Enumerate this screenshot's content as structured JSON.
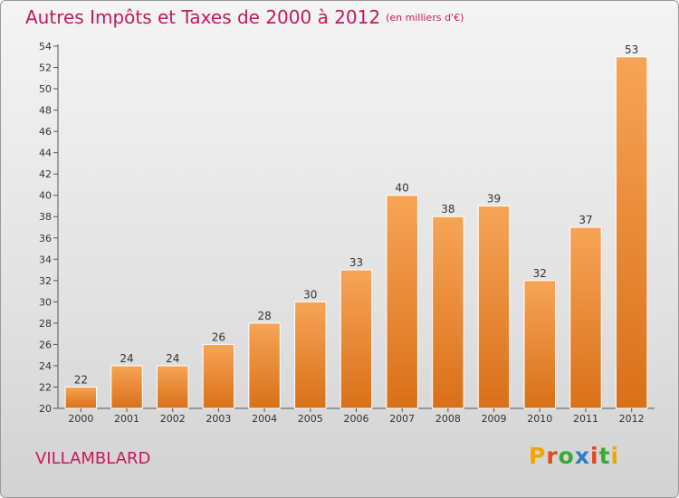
{
  "chart_data": {
    "type": "bar",
    "title": "Autres Impôts et Taxes de 2000 à 2012",
    "subtitle": "(en milliers d'€)",
    "categories": [
      "2000",
      "2001",
      "2002",
      "2003",
      "2004",
      "2005",
      "2006",
      "2007",
      "2008",
      "2009",
      "2010",
      "2011",
      "2012"
    ],
    "values": [
      22,
      24,
      24,
      26,
      28,
      30,
      33,
      40,
      38,
      39,
      32,
      37,
      53
    ],
    "ylim": [
      20,
      54
    ],
    "yticks": [
      20,
      22,
      24,
      26,
      28,
      30,
      32,
      34,
      36,
      38,
      40,
      42,
      44,
      46,
      48,
      50,
      52,
      54
    ],
    "grid": false,
    "colors": {
      "bar_light": "#f7a457",
      "bar_dark": "#d97018",
      "title": "#c8185a"
    }
  },
  "footer": {
    "place": "VILLAMBLARD",
    "brand_letters": [
      "P",
      "r",
      "o",
      "x",
      "i",
      "t",
      "i"
    ],
    "brand_colors": [
      "#f0a500",
      "#e04a1a",
      "#3aa935",
      "#2a7ec8",
      "#e04a1a",
      "#3aa935",
      "#f0a500"
    ]
  }
}
